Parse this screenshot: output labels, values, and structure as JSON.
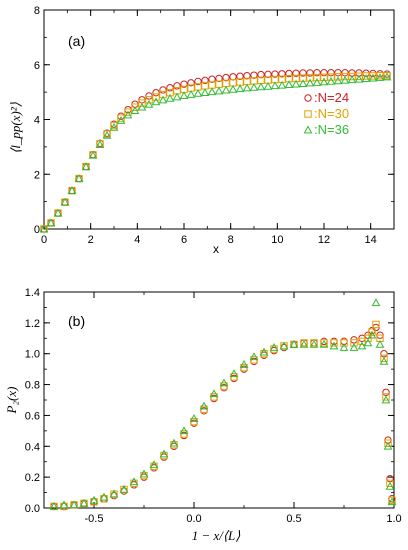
{
  "colors": {
    "N24": "#cc2222",
    "N30": "#e0a000",
    "N36": "#33bb33"
  },
  "chart_data": [
    {
      "type": "scatter",
      "panel_label": "(a)",
      "xlabel": "x",
      "ylabel": "⟨l_pp(x)²⟩",
      "xlim": [
        0,
        15
      ],
      "ylim": [
        0,
        8
      ],
      "xticks": [
        "0",
        "2",
        "4",
        "6",
        "8",
        "10",
        "12",
        "14"
      ],
      "yticks": [
        "0",
        "2",
        "4",
        "6",
        "8"
      ],
      "legend_position": "right",
      "series": [
        {
          "name": "N=24",
          "marker": "circle",
          "x": [
            0.0,
            0.3,
            0.6,
            0.9,
            1.2,
            1.5,
            1.8,
            2.1,
            2.4,
            2.7,
            3.0,
            3.3,
            3.6,
            3.9,
            4.2,
            4.5,
            4.8,
            5.1,
            5.4,
            5.7,
            6.0,
            6.3,
            6.6,
            6.9,
            7.2,
            7.5,
            7.8,
            8.1,
            8.4,
            8.7,
            9.0,
            9.3,
            9.6,
            9.9,
            10.2,
            10.5,
            10.8,
            11.1,
            11.4,
            11.7,
            12.0,
            12.3,
            12.6,
            12.9,
            13.2,
            13.5,
            13.8,
            14.1,
            14.4,
            14.7
          ],
          "y": [
            0.0,
            0.22,
            0.58,
            0.98,
            1.4,
            1.84,
            2.28,
            2.72,
            3.13,
            3.5,
            3.83,
            4.12,
            4.36,
            4.56,
            4.72,
            4.86,
            4.98,
            5.08,
            5.16,
            5.23,
            5.29,
            5.34,
            5.39,
            5.43,
            5.47,
            5.5,
            5.53,
            5.56,
            5.58,
            5.6,
            5.62,
            5.64,
            5.65,
            5.66,
            5.67,
            5.68,
            5.69,
            5.7,
            5.7,
            5.71,
            5.71,
            5.71,
            5.71,
            5.71,
            5.7,
            5.7,
            5.69,
            5.68,
            5.67,
            5.66
          ]
        },
        {
          "name": "N=30",
          "marker": "square",
          "x": [
            0.0,
            0.3,
            0.6,
            0.9,
            1.2,
            1.5,
            1.8,
            2.1,
            2.4,
            2.7,
            3.0,
            3.3,
            3.6,
            3.9,
            4.2,
            4.5,
            4.8,
            5.1,
            5.4,
            5.7,
            6.0,
            6.3,
            6.6,
            6.9,
            7.2,
            7.5,
            7.8,
            8.1,
            8.4,
            8.7,
            9.0,
            9.3,
            9.6,
            9.9,
            10.2,
            10.5,
            10.8,
            11.1,
            11.4,
            11.7,
            12.0,
            12.3,
            12.6,
            12.9,
            13.2,
            13.5,
            13.8,
            14.1,
            14.4,
            14.7
          ],
          "y": [
            0.0,
            0.22,
            0.58,
            0.98,
            1.4,
            1.84,
            2.28,
            2.71,
            3.11,
            3.47,
            3.78,
            4.05,
            4.27,
            4.45,
            4.6,
            4.72,
            4.82,
            4.91,
            4.98,
            5.05,
            5.1,
            5.15,
            5.19,
            5.23,
            5.26,
            5.29,
            5.32,
            5.34,
            5.37,
            5.39,
            5.41,
            5.43,
            5.44,
            5.46,
            5.47,
            5.49,
            5.5,
            5.51,
            5.52,
            5.53,
            5.54,
            5.55,
            5.56,
            5.57,
            5.57,
            5.58,
            5.59,
            5.59,
            5.6,
            5.6
          ]
        },
        {
          "name": "N=36",
          "marker": "triangle",
          "x": [
            0.0,
            0.3,
            0.6,
            0.9,
            1.2,
            1.5,
            1.8,
            2.1,
            2.4,
            2.7,
            3.0,
            3.3,
            3.6,
            3.9,
            4.2,
            4.5,
            4.8,
            5.1,
            5.4,
            5.7,
            6.0,
            6.3,
            6.6,
            6.9,
            7.2,
            7.5,
            7.8,
            8.1,
            8.4,
            8.7,
            9.0,
            9.3,
            9.6,
            9.9,
            10.2,
            10.5,
            10.8,
            11.1,
            11.4,
            11.7,
            12.0,
            12.3,
            12.6,
            12.9,
            13.2,
            13.5,
            13.8,
            14.1,
            14.4,
            14.7
          ],
          "y": [
            0.0,
            0.22,
            0.58,
            0.98,
            1.4,
            1.84,
            2.27,
            2.69,
            3.08,
            3.42,
            3.71,
            3.96,
            4.16,
            4.32,
            4.45,
            4.55,
            4.64,
            4.71,
            4.77,
            4.82,
            4.87,
            4.91,
            4.95,
            4.98,
            5.01,
            5.04,
            5.07,
            5.1,
            5.12,
            5.15,
            5.17,
            5.19,
            5.21,
            5.23,
            5.25,
            5.27,
            5.29,
            5.31,
            5.33,
            5.35,
            5.37,
            5.39,
            5.41,
            5.43,
            5.45,
            5.47,
            5.49,
            5.51,
            5.53,
            5.55
          ]
        }
      ]
    },
    {
      "type": "scatter",
      "panel_label": "(b)",
      "xlabel": "1 − x/⟨L⟩",
      "ylabel": "P₂(x)",
      "xlim": [
        -0.75,
        1.0
      ],
      "ylim": [
        0,
        1.4
      ],
      "xticks": [
        "-0.5",
        "0.0",
        "0.5",
        "1.0"
      ],
      "yticks": [
        "0.0",
        "0.2",
        "0.4",
        "0.6",
        "0.8",
        "1.0",
        "1.2",
        "1.4"
      ],
      "series": [
        {
          "name": "N=24",
          "marker": "circle",
          "x": [
            -0.7,
            -0.65,
            -0.6,
            -0.55,
            -0.5,
            -0.45,
            -0.4,
            -0.35,
            -0.3,
            -0.25,
            -0.2,
            -0.15,
            -0.1,
            -0.05,
            0.0,
            0.05,
            0.1,
            0.15,
            0.2,
            0.25,
            0.3,
            0.35,
            0.4,
            0.45,
            0.5,
            0.55,
            0.6,
            0.65,
            0.7,
            0.75,
            0.8,
            0.84,
            0.87,
            0.89,
            0.91,
            0.93,
            0.95,
            0.96,
            0.97,
            0.98,
            0.99
          ],
          "y": [
            0.01,
            0.01,
            0.02,
            0.03,
            0.04,
            0.06,
            0.08,
            0.11,
            0.15,
            0.2,
            0.26,
            0.33,
            0.4,
            0.47,
            0.55,
            0.63,
            0.71,
            0.78,
            0.84,
            0.9,
            0.95,
            0.99,
            1.02,
            1.04,
            1.06,
            1.07,
            1.07,
            1.08,
            1.08,
            1.08,
            1.09,
            1.1,
            1.12,
            1.15,
            1.17,
            1.12,
            1.0,
            0.75,
            0.44,
            0.19,
            0.06
          ]
        },
        {
          "name": "N=30",
          "marker": "square",
          "x": [
            -0.7,
            -0.65,
            -0.6,
            -0.55,
            -0.5,
            -0.45,
            -0.4,
            -0.35,
            -0.3,
            -0.25,
            -0.2,
            -0.15,
            -0.1,
            -0.05,
            0.0,
            0.05,
            0.1,
            0.15,
            0.2,
            0.25,
            0.3,
            0.35,
            0.4,
            0.45,
            0.5,
            0.55,
            0.6,
            0.65,
            0.7,
            0.75,
            0.8,
            0.84,
            0.87,
            0.89,
            0.91,
            0.93,
            0.95,
            0.96,
            0.97,
            0.98,
            0.99
          ],
          "y": [
            0.01,
            0.01,
            0.02,
            0.03,
            0.04,
            0.06,
            0.09,
            0.12,
            0.16,
            0.21,
            0.27,
            0.34,
            0.41,
            0.48,
            0.56,
            0.64,
            0.72,
            0.79,
            0.85,
            0.91,
            0.96,
            1.0,
            1.03,
            1.05,
            1.06,
            1.07,
            1.07,
            1.07,
            1.07,
            1.07,
            1.07,
            1.08,
            1.1,
            1.14,
            1.19,
            1.1,
            0.97,
            0.72,
            0.42,
            0.16,
            0.05
          ]
        },
        {
          "name": "N=36",
          "marker": "triangle",
          "x": [
            -0.7,
            -0.65,
            -0.6,
            -0.55,
            -0.5,
            -0.45,
            -0.4,
            -0.35,
            -0.3,
            -0.25,
            -0.2,
            -0.15,
            -0.1,
            -0.05,
            0.0,
            0.05,
            0.1,
            0.15,
            0.2,
            0.25,
            0.3,
            0.35,
            0.4,
            0.45,
            0.5,
            0.55,
            0.6,
            0.65,
            0.7,
            0.75,
            0.8,
            0.84,
            0.87,
            0.89,
            0.91,
            0.93,
            0.95,
            0.96,
            0.97,
            0.98,
            0.99
          ],
          "y": [
            0.01,
            0.02,
            0.02,
            0.03,
            0.05,
            0.07,
            0.09,
            0.12,
            0.17,
            0.22,
            0.28,
            0.35,
            0.42,
            0.5,
            0.58,
            0.66,
            0.74,
            0.81,
            0.87,
            0.93,
            0.98,
            1.01,
            1.04,
            1.05,
            1.06,
            1.06,
            1.06,
            1.06,
            1.05,
            1.04,
            1.04,
            1.05,
            1.07,
            1.12,
            1.33,
            1.06,
            0.95,
            0.7,
            0.4,
            0.14,
            0.04
          ]
        }
      ]
    }
  ]
}
